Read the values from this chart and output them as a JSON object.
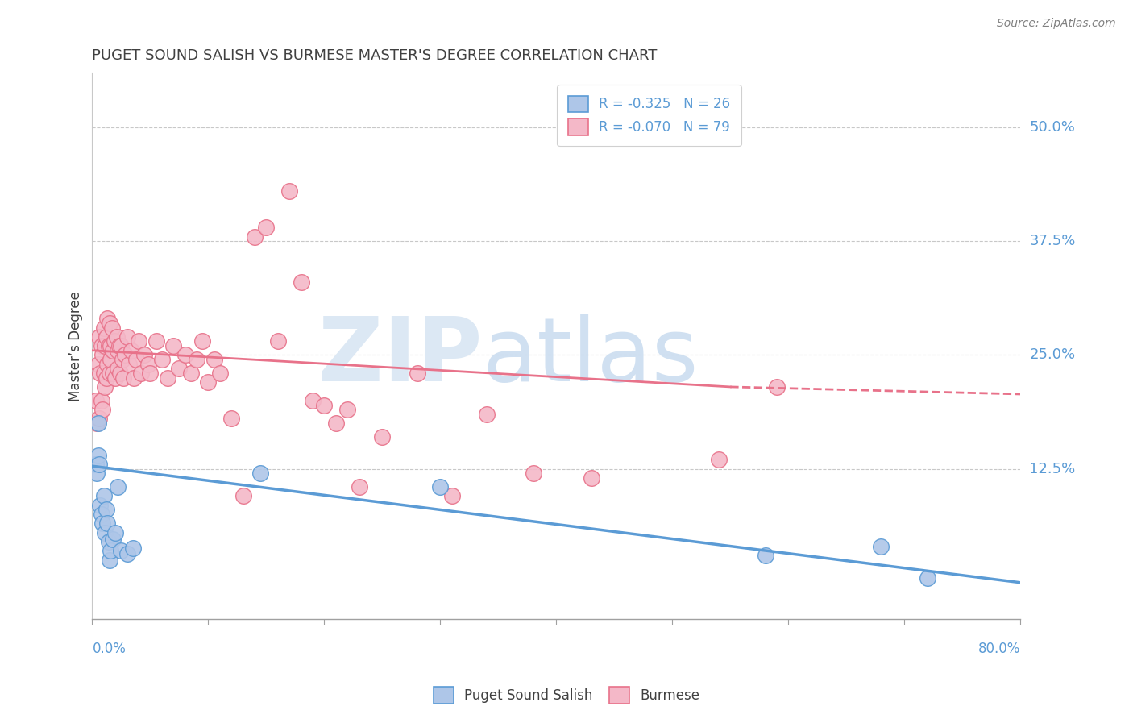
{
  "title": "PUGET SOUND SALISH VS BURMESE MASTER'S DEGREE CORRELATION CHART",
  "source": "Source: ZipAtlas.com",
  "ylabel": "Master’s Degree",
  "ytick_labels": [
    "12.5%",
    "25.0%",
    "37.5%",
    "50.0%"
  ],
  "ytick_vals": [
    0.125,
    0.25,
    0.375,
    0.5
  ],
  "xlim": [
    0.0,
    0.8
  ],
  "ylim": [
    -0.04,
    0.56
  ],
  "blue_color": "#5b9bd5",
  "pink_color": "#e8728a",
  "blue_face": "#aec6e8",
  "pink_face": "#f4b8c8",
  "axis_label_color": "#5b9bd5",
  "title_color": "#404040",
  "blue_reg": [
    0.0,
    0.8,
    0.128,
    0.0
  ],
  "pink_reg_solid": [
    0.0,
    0.55,
    0.255,
    0.215
  ],
  "pink_reg_dash": [
    0.55,
    0.8,
    0.215,
    0.207
  ],
  "blue_scatter_x": [
    0.003,
    0.004,
    0.005,
    0.005,
    0.006,
    0.007,
    0.008,
    0.009,
    0.01,
    0.011,
    0.012,
    0.013,
    0.014,
    0.015,
    0.016,
    0.018,
    0.02,
    0.022,
    0.025,
    0.03,
    0.035,
    0.145,
    0.3,
    0.58,
    0.68,
    0.72
  ],
  "blue_scatter_y": [
    0.13,
    0.12,
    0.175,
    0.14,
    0.13,
    0.085,
    0.075,
    0.065,
    0.095,
    0.055,
    0.08,
    0.065,
    0.045,
    0.025,
    0.035,
    0.048,
    0.055,
    0.105,
    0.035,
    0.032,
    0.038,
    0.12,
    0.105,
    0.03,
    0.04,
    0.005
  ],
  "pink_scatter_x": [
    0.003,
    0.004,
    0.005,
    0.006,
    0.006,
    0.007,
    0.008,
    0.008,
    0.009,
    0.009,
    0.01,
    0.01,
    0.011,
    0.011,
    0.012,
    0.012,
    0.013,
    0.013,
    0.014,
    0.015,
    0.015,
    0.016,
    0.016,
    0.017,
    0.018,
    0.018,
    0.019,
    0.02,
    0.021,
    0.022,
    0.022,
    0.023,
    0.024,
    0.025,
    0.026,
    0.027,
    0.028,
    0.03,
    0.032,
    0.034,
    0.036,
    0.038,
    0.04,
    0.042,
    0.045,
    0.048,
    0.05,
    0.055,
    0.06,
    0.065,
    0.07,
    0.075,
    0.08,
    0.085,
    0.09,
    0.095,
    0.1,
    0.105,
    0.11,
    0.12,
    0.13,
    0.14,
    0.15,
    0.16,
    0.17,
    0.18,
    0.19,
    0.2,
    0.21,
    0.22,
    0.23,
    0.25,
    0.28,
    0.31,
    0.34,
    0.38,
    0.43,
    0.54,
    0.59
  ],
  "pink_scatter_y": [
    0.2,
    0.175,
    0.24,
    0.18,
    0.27,
    0.23,
    0.26,
    0.2,
    0.25,
    0.19,
    0.23,
    0.28,
    0.215,
    0.26,
    0.225,
    0.27,
    0.24,
    0.29,
    0.26,
    0.285,
    0.23,
    0.26,
    0.245,
    0.28,
    0.255,
    0.23,
    0.265,
    0.225,
    0.27,
    0.255,
    0.235,
    0.26,
    0.23,
    0.26,
    0.245,
    0.225,
    0.25,
    0.27,
    0.24,
    0.255,
    0.225,
    0.245,
    0.265,
    0.23,
    0.25,
    0.24,
    0.23,
    0.265,
    0.245,
    0.225,
    0.26,
    0.235,
    0.25,
    0.23,
    0.245,
    0.265,
    0.22,
    0.245,
    0.23,
    0.18,
    0.095,
    0.38,
    0.39,
    0.265,
    0.43,
    0.33,
    0.2,
    0.195,
    0.175,
    0.19,
    0.105,
    0.16,
    0.23,
    0.095,
    0.185,
    0.12,
    0.115,
    0.135,
    0.215
  ]
}
